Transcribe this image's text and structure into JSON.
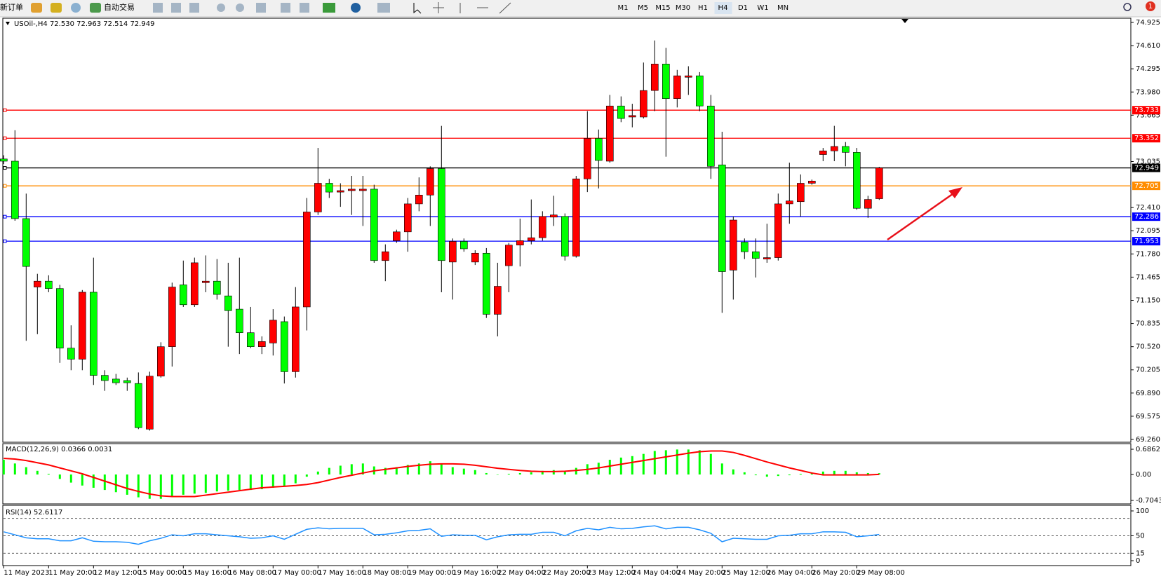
{
  "toolbar": {
    "new_order": "新订单",
    "auto_trading": "自动交易",
    "timeframes": [
      "M1",
      "M5",
      "M15",
      "M30",
      "H1",
      "H4",
      "D1",
      "W1",
      "MN"
    ],
    "notifications": 1
  },
  "chart_data": [
    {
      "type": "candlestick",
      "title": "USOil-,H4 72.530 72.963 72.514 72.949",
      "categories": [
        "11 May 2023",
        null,
        null,
        null,
        "11 May 20:00",
        null,
        null,
        null,
        "12 May 12:00",
        null,
        null,
        null,
        "15 May 00:00",
        null,
        null,
        null,
        "15 May 16:00",
        null,
        null,
        null,
        "16 May 08:00",
        null,
        null,
        null,
        "17 May 00:00",
        null,
        null,
        null,
        "17 May 16:00",
        null,
        null,
        null,
        "18 May 08:00",
        null,
        null,
        null,
        "19 May 00:00",
        null,
        null,
        null,
        "19 May 16:00",
        null,
        null,
        null,
        "22 May 04:00",
        null,
        null,
        null,
        "22 May 20:00",
        null,
        null,
        null,
        "23 May 12:00",
        null,
        null,
        null,
        "24 May 04:00",
        null,
        null,
        null,
        "24 May 20:00",
        null,
        null,
        null,
        "25 May 12:00",
        null,
        null,
        null,
        "26 May 04:00",
        null,
        null,
        null,
        "26 May 20:00",
        null,
        null,
        null,
        "29 May 08:00",
        null,
        null
      ],
      "open": [
        73.07,
        73.04,
        72.26,
        71.33,
        71.41,
        71.31,
        70.5,
        70.35,
        71.26,
        70.13,
        70.08,
        70.06,
        70.02,
        69.4,
        70.12,
        70.52,
        71.36,
        71.09,
        71.39,
        71.41,
        71.21,
        71.03,
        70.71,
        70.52,
        70.57,
        70.86,
        70.18,
        71.06,
        72.35,
        72.74,
        72.62,
        72.64,
        72.64,
        72.66,
        71.69,
        71.96,
        72.08,
        72.46,
        72.58,
        72.94,
        71.67,
        71.95,
        71.67,
        71.79,
        70.96,
        71.62,
        71.9,
        71.96,
        72.0,
        72.28,
        72.29,
        71.75,
        72.8,
        73.35,
        73.04,
        73.79,
        73.64,
        73.64,
        74.0,
        74.36,
        73.89,
        74.18,
        74.2,
        73.79,
        72.99,
        71.56,
        71.94,
        71.81,
        71.71,
        71.73,
        72.46,
        72.49,
        72.74,
        73.13,
        73.18,
        73.24,
        73.16,
        72.4,
        72.53
      ],
      "high": [
        73.12,
        73.46,
        72.6,
        71.51,
        71.49,
        71.36,
        70.81,
        71.29,
        71.73,
        70.2,
        70.15,
        70.1,
        70.17,
        70.18,
        70.58,
        71.39,
        71.69,
        71.73,
        71.76,
        71.71,
        71.66,
        71.73,
        71.06,
        70.66,
        71.03,
        70.93,
        71.33,
        72.54,
        73.22,
        72.8,
        72.74,
        72.84,
        72.84,
        72.72,
        71.91,
        72.11,
        72.54,
        72.82,
        72.97,
        73.52,
        71.99,
        71.99,
        71.83,
        71.86,
        71.66,
        71.93,
        72.26,
        72.52,
        72.36,
        72.57,
        72.33,
        72.84,
        73.72,
        73.47,
        73.94,
        73.92,
        73.82,
        74.38,
        74.68,
        74.58,
        74.28,
        74.33,
        74.25,
        73.94,
        73.44,
        72.29,
        71.99,
        71.99,
        72.19,
        72.6,
        73.02,
        72.86,
        72.79,
        73.22,
        73.52,
        73.3,
        73.22,
        72.57,
        72.963
      ],
      "low": [
        73.0,
        72.23,
        70.6,
        70.69,
        71.26,
        70.3,
        70.2,
        70.2,
        70.0,
        69.92,
        70.0,
        69.92,
        69.4,
        69.38,
        70.1,
        70.25,
        71.06,
        71.06,
        71.26,
        71.16,
        70.52,
        70.42,
        70.5,
        70.42,
        70.4,
        70.02,
        70.1,
        70.74,
        72.31,
        72.54,
        72.42,
        72.31,
        72.16,
        71.66,
        71.41,
        71.93,
        71.81,
        72.36,
        72.16,
        71.26,
        71.16,
        71.81,
        71.63,
        70.91,
        70.66,
        71.26,
        71.61,
        71.91,
        71.96,
        72.16,
        71.69,
        71.73,
        72.62,
        72.67,
        73.02,
        73.57,
        73.5,
        73.62,
        73.72,
        73.1,
        73.77,
        73.94,
        73.72,
        72.8,
        70.98,
        71.16,
        71.71,
        71.46,
        71.66,
        71.69,
        72.19,
        72.29,
        72.72,
        73.04,
        73.04,
        72.97,
        72.38,
        72.27,
        72.514
      ],
      "close": [
        73.04,
        72.26,
        71.61,
        71.41,
        71.31,
        70.5,
        70.35,
        71.26,
        70.13,
        70.06,
        70.03,
        70.03,
        69.42,
        70.12,
        70.52,
        71.33,
        71.09,
        71.66,
        71.41,
        71.23,
        71.01,
        70.71,
        70.52,
        70.59,
        70.88,
        70.18,
        71.06,
        72.35,
        72.74,
        72.62,
        72.64,
        72.66,
        72.66,
        71.69,
        71.81,
        72.08,
        72.46,
        72.58,
        72.94,
        71.69,
        71.95,
        71.85,
        71.79,
        70.96,
        71.34,
        71.9,
        71.96,
        72.0,
        72.29,
        72.31,
        71.75,
        72.8,
        73.35,
        73.05,
        73.79,
        73.62,
        73.66,
        74.0,
        74.36,
        73.89,
        74.2,
        74.2,
        73.79,
        72.97,
        71.54,
        72.24,
        71.81,
        71.72,
        71.73,
        72.46,
        72.5,
        72.74,
        72.77,
        73.18,
        73.24,
        73.16,
        72.4,
        72.52,
        72.949
      ],
      "up_color": "#ff0000",
      "down_color": "#00ff00",
      "ylim": [
        69.26,
        74.925
      ],
      "yticks": [
        74.925,
        {
          "value": 74.61,
          "label": "74.610"
        },
        74.295,
        {
          "value": 73.98,
          "label": "73.980"
        },
        73.665,
        73.035,
        {
          "value": 72.41,
          "label": "72.410"
        },
        72.095,
        {
          "value": 71.78,
          "label": "71.780"
        },
        71.465,
        {
          "value": 71.15,
          "label": "71.150"
        },
        70.835,
        {
          "value": 70.52,
          "label": "70.520"
        },
        70.205,
        {
          "value": 69.89,
          "label": "69.890"
        },
        69.575,
        {
          "value": 69.26,
          "label": "69.260"
        }
      ],
      "lines": [
        {
          "value": 73.733,
          "color": "#ff0000"
        },
        {
          "value": 73.352,
          "color": "#ff0000"
        },
        {
          "value": 72.949,
          "color": "#000000"
        },
        {
          "value": 72.705,
          "color": "#ff8c00"
        },
        {
          "value": 72.286,
          "color": "#0000ff"
        },
        {
          "value": 71.953,
          "color": "#0000ff"
        }
      ]
    },
    {
      "type": "macd",
      "title": "MACD(12,26,9) 0.0366 0.0031",
      "values": [
        0.4,
        0.3,
        0.2,
        0.1,
        0.02,
        -0.12,
        -0.22,
        -0.3,
        -0.36,
        -0.42,
        -0.48,
        -0.55,
        -0.62,
        -0.66,
        -0.66,
        -0.6,
        -0.55,
        -0.52,
        -0.5,
        -0.46,
        -0.44,
        -0.42,
        -0.42,
        -0.4,
        -0.36,
        -0.33,
        -0.24,
        -0.06,
        0.08,
        0.18,
        0.24,
        0.28,
        0.3,
        0.22,
        0.18,
        0.2,
        0.26,
        0.3,
        0.36,
        0.3,
        0.2,
        0.16,
        0.12,
        0.04,
        0.0,
        0.02,
        0.04,
        0.06,
        0.1,
        0.12,
        0.1,
        0.18,
        0.28,
        0.32,
        0.4,
        0.46,
        0.5,
        0.56,
        0.64,
        0.66,
        0.68,
        0.68,
        0.66,
        0.56,
        0.3,
        0.14,
        0.06,
        -0.02,
        -0.06,
        -0.04,
        -0.02,
        0.02,
        0.04,
        0.08,
        0.1,
        0.1,
        0.06,
        0.04,
        0.0366
      ],
      "signal": [
        0.44,
        0.42,
        0.38,
        0.32,
        0.26,
        0.18,
        0.1,
        0.02,
        -0.08,
        -0.18,
        -0.28,
        -0.38,
        -0.46,
        -0.53,
        -0.58,
        -0.6,
        -0.6,
        -0.6,
        -0.56,
        -0.52,
        -0.48,
        -0.44,
        -0.4,
        -0.36,
        -0.34,
        -0.32,
        -0.3,
        -0.27,
        -0.22,
        -0.15,
        -0.08,
        -0.02,
        0.04,
        0.1,
        0.14,
        0.18,
        0.22,
        0.25,
        0.28,
        0.29,
        0.29,
        0.28,
        0.25,
        0.21,
        0.17,
        0.14,
        0.11,
        0.09,
        0.08,
        0.08,
        0.09,
        0.11,
        0.14,
        0.18,
        0.23,
        0.28,
        0.33,
        0.38,
        0.43,
        0.48,
        0.53,
        0.58,
        0.62,
        0.64,
        0.64,
        0.6,
        0.52,
        0.43,
        0.34,
        0.26,
        0.18,
        0.11,
        0.04,
        -0.01,
        -0.01,
        -0.01,
        -0.01,
        -0.01,
        0.0031
      ],
      "color": "#00ff00",
      "signal_color": "#ff0000",
      "ylim": [
        -0.78,
        0.82
      ],
      "yticks": [
        0.6862,
        {
          "value": 0,
          "label": "0.00"
        },
        -0.7043
      ]
    },
    {
      "type": "line",
      "title": "RSI(14) 52.6117",
      "values": [
        58,
        52,
        46,
        44,
        44,
        40,
        40,
        46,
        39,
        38,
        38,
        37,
        33,
        40,
        45,
        52,
        50,
        54,
        54,
        52,
        50,
        48,
        45,
        46,
        50,
        43,
        53,
        63,
        66,
        64,
        65,
        65,
        65,
        52,
        53,
        56,
        60,
        61,
        64,
        49,
        52,
        51,
        51,
        42,
        48,
        52,
        53,
        53,
        57,
        57,
        50,
        60,
        65,
        62,
        67,
        64,
        65,
        68,
        70,
        64,
        67,
        67,
        62,
        55,
        38,
        45,
        44,
        43,
        43,
        50,
        51,
        54,
        54,
        58,
        58,
        57,
        48,
        50,
        52.6117
      ],
      "color": "#1e90ff",
      "ylim": [
        0,
        100
      ],
      "yticks": [
        100,
        50,
        15,
        0
      ],
      "levels": [
        85,
        50,
        15
      ]
    }
  ]
}
